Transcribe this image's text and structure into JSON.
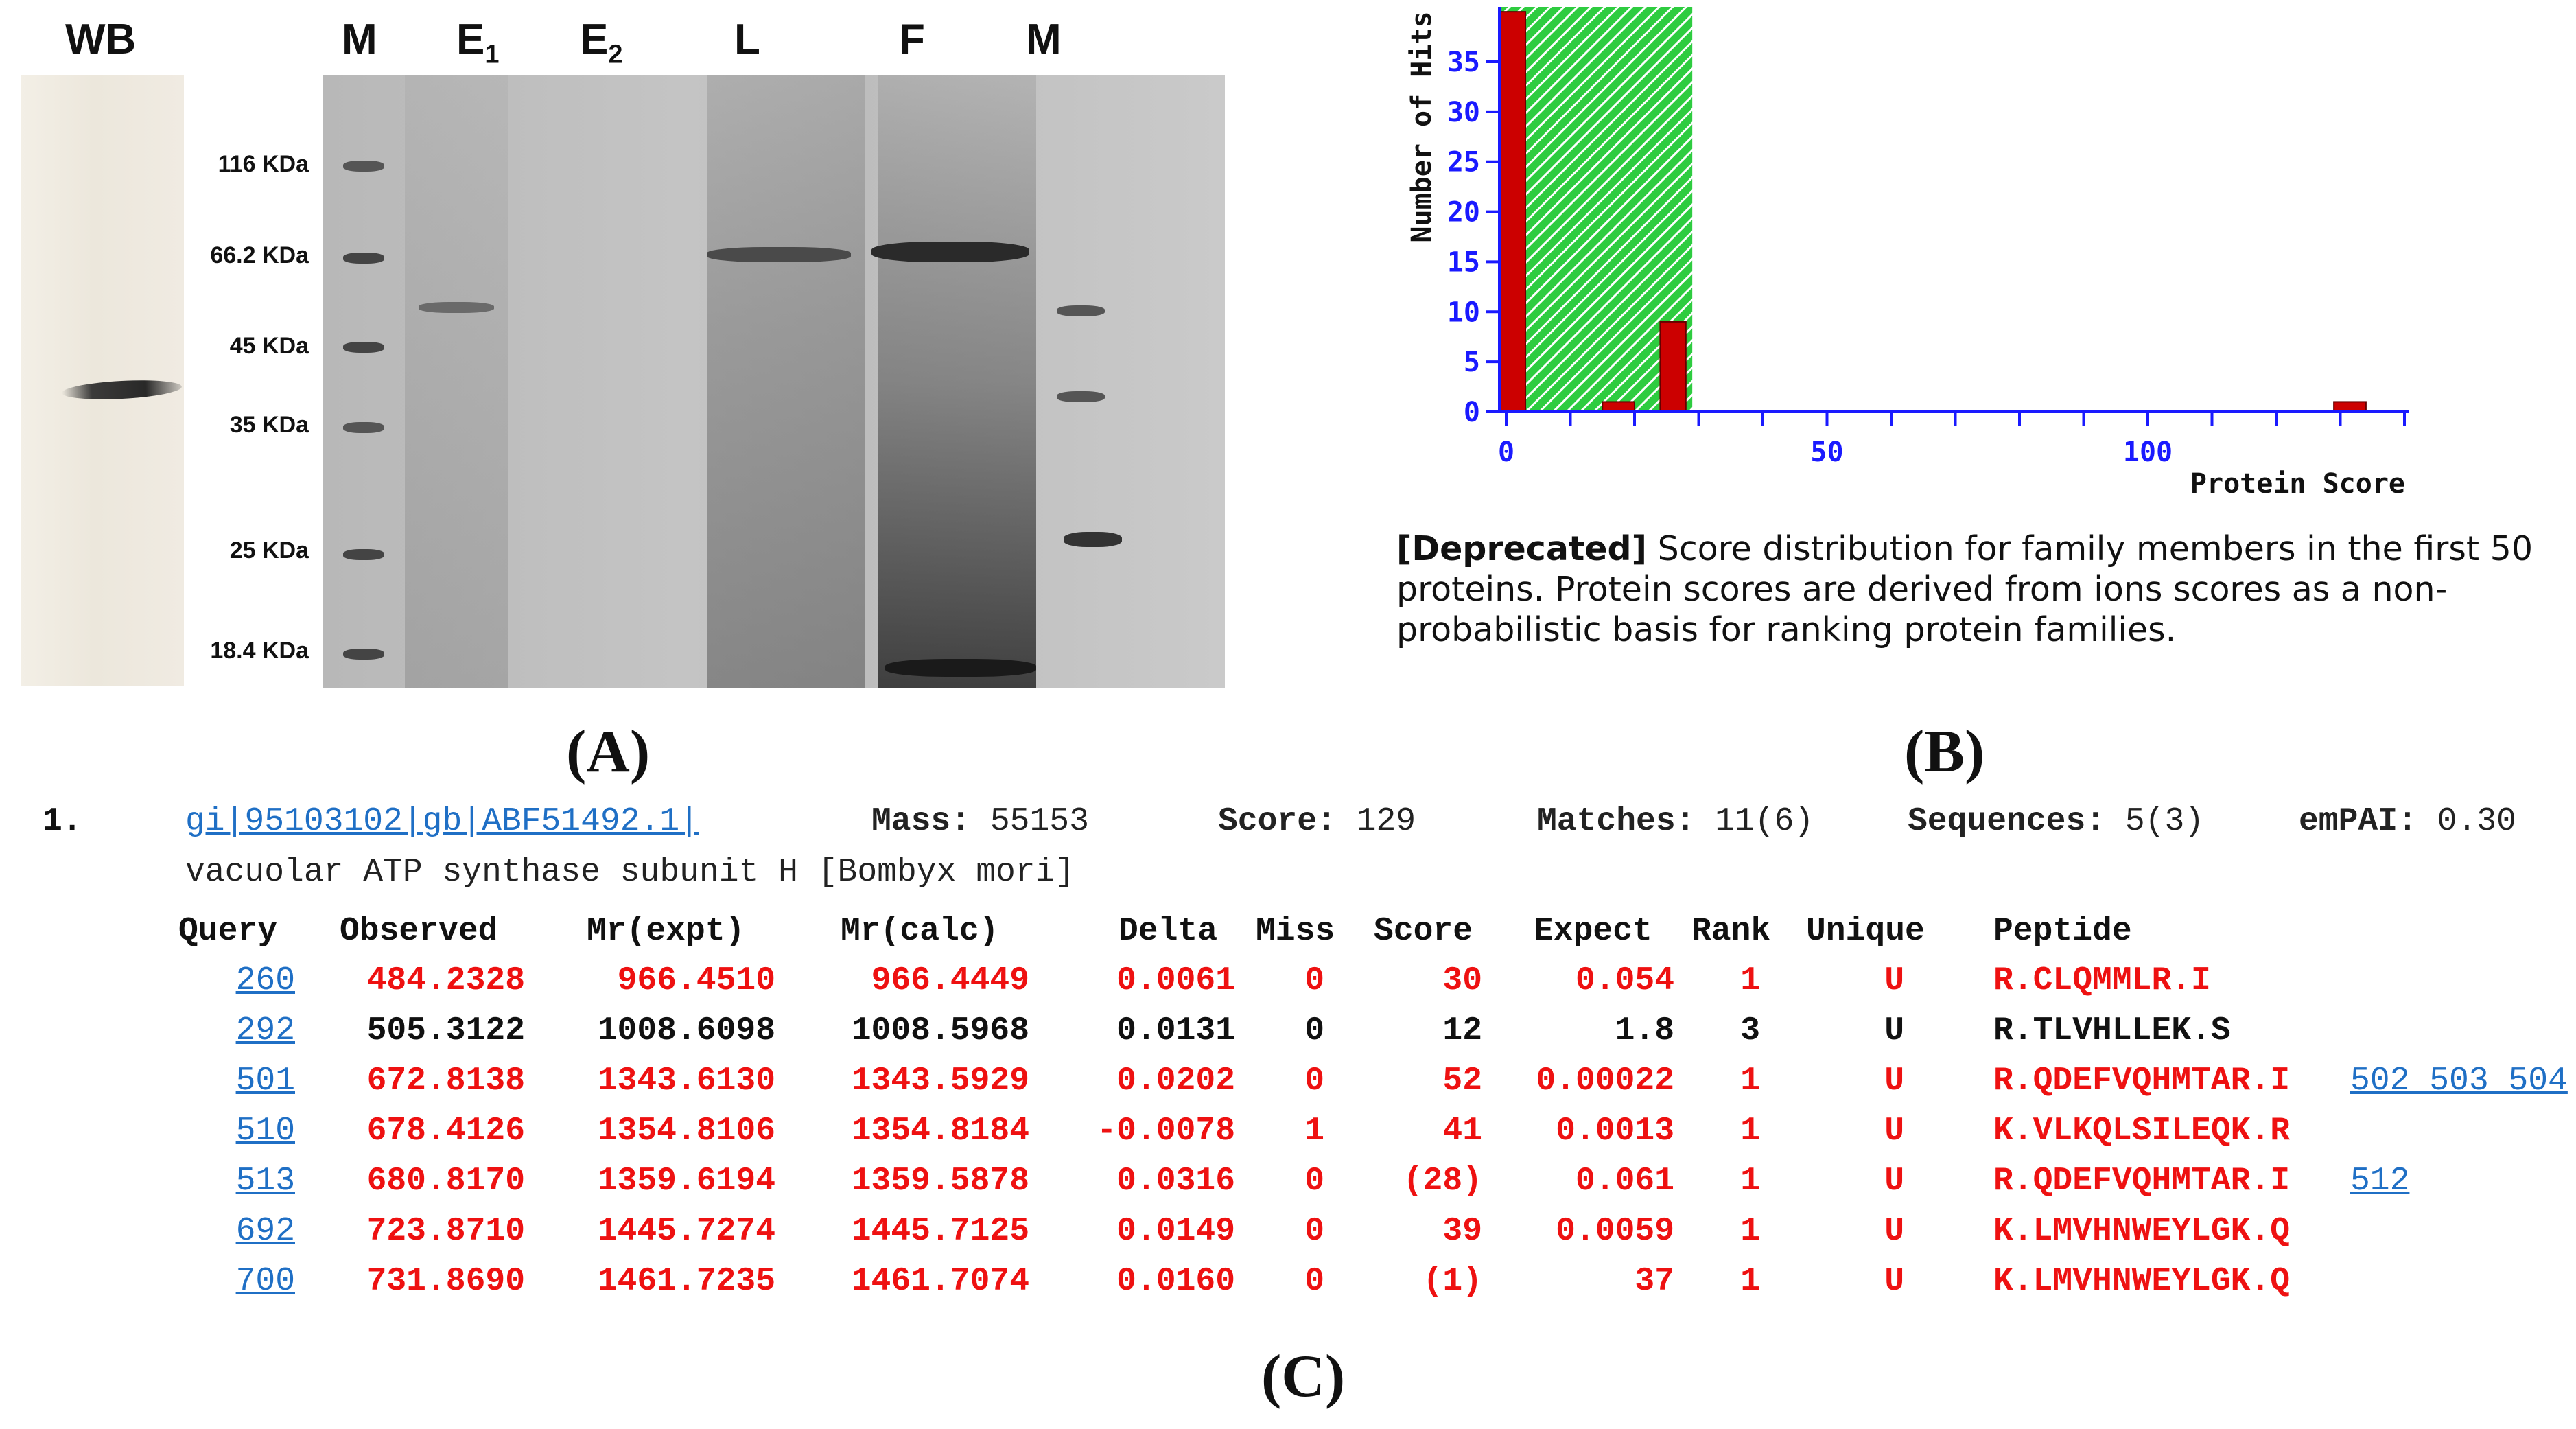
{
  "panelA": {
    "wb_label": "WB",
    "lanes": [
      "M",
      "E",
      "1",
      "E",
      "2",
      "L",
      "F",
      "M"
    ],
    "markers": [
      "116 KDa",
      "66.2 KDa",
      "45 KDa",
      "35 KDa",
      "25 KDa",
      "18.4 KDa"
    ],
    "letter": "(A)"
  },
  "panelB": {
    "letter": "(B)",
    "caption_bold": "[Deprecated]",
    "caption_text": "Score distribution for family members in the first 50 proteins. Protein scores are derived from ions scores as a non-probabilistic basis for ranking protein families.",
    "chart_data": {
      "type": "bar",
      "xlabel": "Protein Score",
      "ylabel": "Number of Hits",
      "xticks": [
        "0",
        "50",
        "100"
      ],
      "yticks": [
        "0",
        "5",
        "10",
        "15",
        "20",
        "25",
        "30",
        "35"
      ],
      "xlim": [
        0,
        140
      ],
      "ylim": [
        0,
        39
      ],
      "bars": [
        {
          "x_start": 0,
          "x_end": 3,
          "value": 40
        },
        {
          "x_start": 15,
          "x_end": 20,
          "value": 1
        },
        {
          "x_start": 24,
          "x_end": 28,
          "value": 9
        },
        {
          "x_start": 129,
          "x_end": 134,
          "value": 1
        }
      ],
      "threshold_region": [
        0,
        29
      ],
      "colors": {
        "bar": "#cc0000",
        "threshold": "#2ecc40",
        "axis": "#1a1aff"
      }
    }
  },
  "panelC": {
    "letter": "(C)",
    "index": "1.",
    "accession": "gi|95103102|gb|ABF51492.1|",
    "mass_label": "Mass:",
    "mass_value": "55153",
    "score_label": "Score:",
    "score_value": "129",
    "matches_label": "Matches:",
    "matches_value": "11(6)",
    "sequences_label": "Sequences:",
    "sequences_value": "5(3)",
    "empai_label": "emPAI:",
    "empai_value": "0.30",
    "description": "vacuolar ATP synthase subunit H [Bombyx mori]",
    "columns": [
      "Query",
      "Observed",
      "Mr(expt)",
      "Mr(calc)",
      "Delta",
      "Miss",
      "Score",
      "Expect",
      "Rank",
      "Unique",
      "Peptide"
    ],
    "rows": [
      {
        "query": "260",
        "observed": "484.2328",
        "mr_expt": "966.4510",
        "mr_calc": "966.4449",
        "delta": "0.0061",
        "miss": "0",
        "score": "30",
        "expect": "0.054",
        "rank": "1",
        "unique": "U",
        "peptide": "R.CLQMMLR.I",
        "extra": "",
        "color": "#ee1111"
      },
      {
        "query": "292",
        "observed": "505.3122",
        "mr_expt": "1008.6098",
        "mr_calc": "1008.5968",
        "delta": "0.0131",
        "miss": "0",
        "score": "12",
        "expect": "1.8",
        "rank": "3",
        "unique": "U",
        "peptide": "R.TLVHLLEK.S",
        "extra": "",
        "color": "#111111"
      },
      {
        "query": "501",
        "observed": "672.8138",
        "mr_expt": "1343.6130",
        "mr_calc": "1343.5929",
        "delta": "0.0202",
        "miss": "0",
        "score": "52",
        "expect": "0.00022",
        "rank": "1",
        "unique": "U",
        "peptide": "R.QDEFVQHMTAR.I",
        "extra": "502 503 504",
        "color": "#ee1111"
      },
      {
        "query": "510",
        "observed": "678.4126",
        "mr_expt": "1354.8106",
        "mr_calc": "1354.8184",
        "delta": "-0.0078",
        "miss": "1",
        "score": "41",
        "expect": "0.0013",
        "rank": "1",
        "unique": "U",
        "peptide": "K.VLKQLSILEQK.R",
        "extra": "",
        "color": "#ee1111"
      },
      {
        "query": "513",
        "observed": "680.8170",
        "mr_expt": "1359.6194",
        "mr_calc": "1359.5878",
        "delta": "0.0316",
        "miss": "0",
        "score": "(28)",
        "expect": "0.061",
        "rank": "1",
        "unique": "U",
        "peptide": "R.QDEFVQHMTAR.I",
        "extra": "512",
        "color": "#ee1111"
      },
      {
        "query": "692",
        "observed": "723.8710",
        "mr_expt": "1445.7274",
        "mr_calc": "1445.7125",
        "delta": "0.0149",
        "miss": "0",
        "score": "39",
        "expect": "0.0059",
        "rank": "1",
        "unique": "U",
        "peptide": "K.LMVHNWEYLGK.Q",
        "extra": "",
        "color": "#ee1111"
      },
      {
        "query": "700",
        "observed": "731.8690",
        "mr_expt": "1461.7235",
        "mr_calc": "1461.7074",
        "delta": "0.0160",
        "miss": "0",
        "score": "(1)",
        "expect": "37",
        "rank": "1",
        "unique": "U",
        "peptide": "K.LMVHNWEYLGK.Q",
        "extra": "",
        "color": "#ee1111"
      }
    ]
  }
}
